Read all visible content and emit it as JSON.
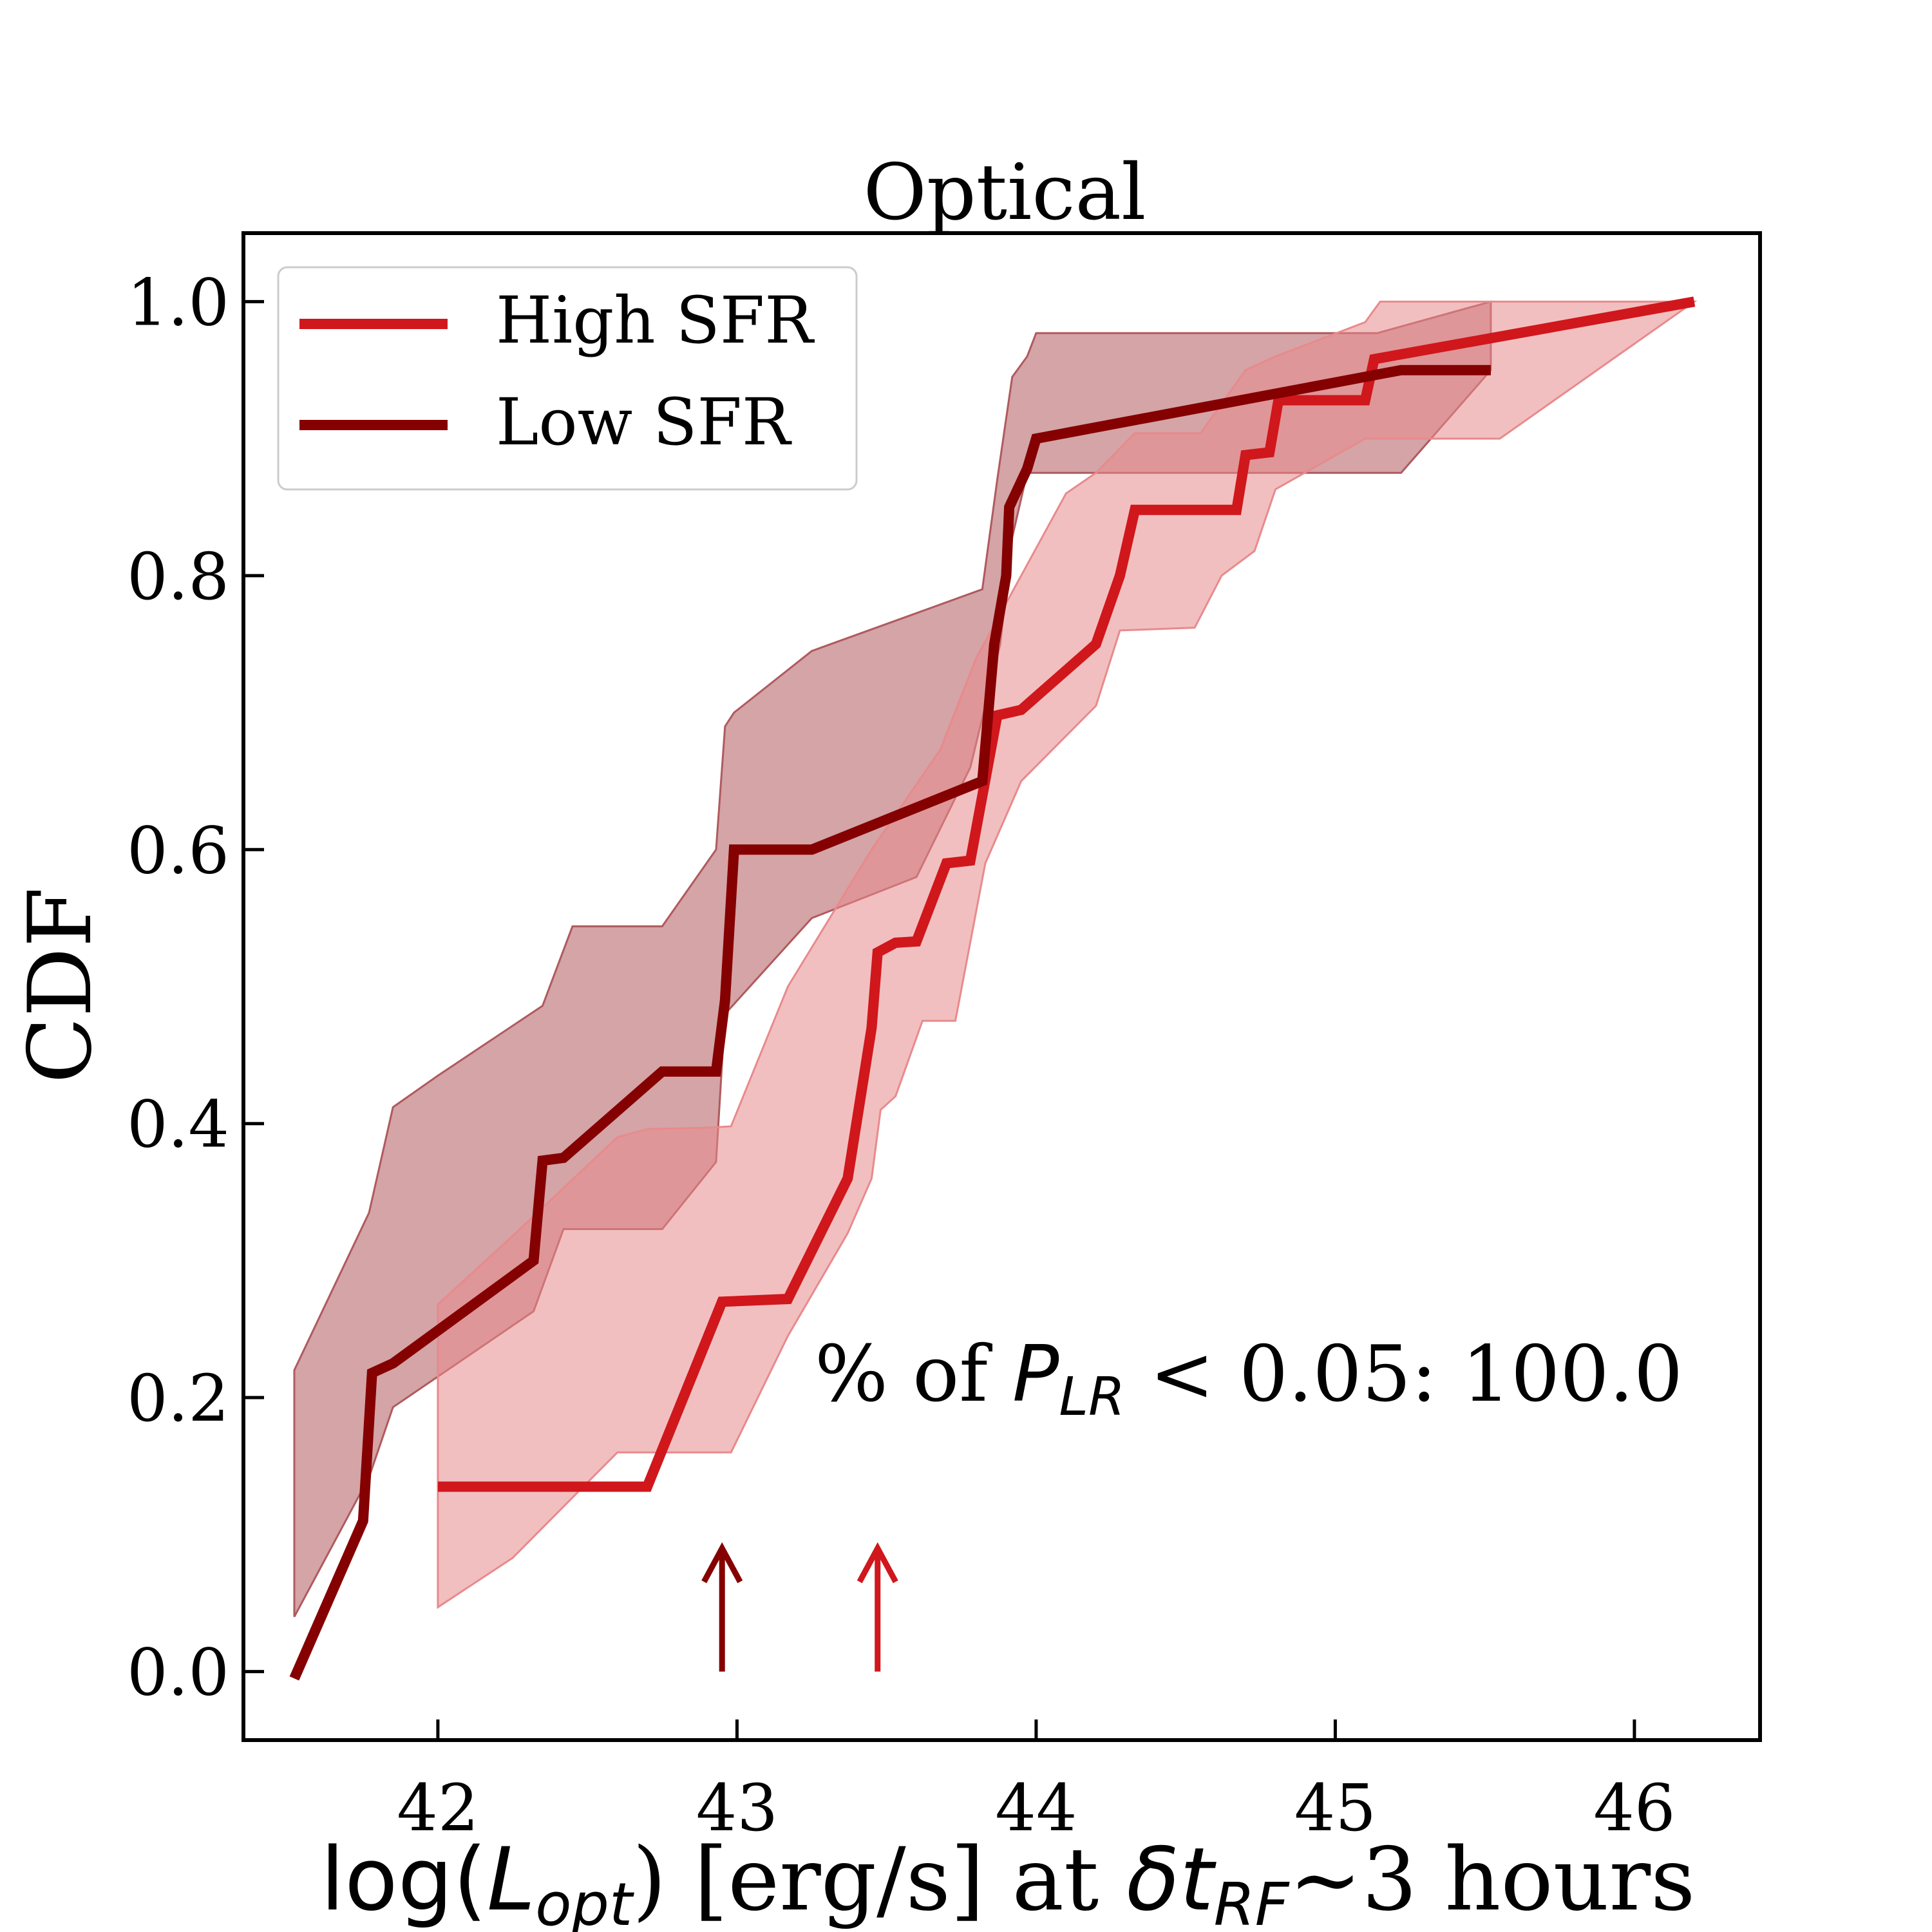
{
  "chart_data": {
    "type": "line",
    "title": "Optical",
    "ylabel": "CDF",
    "xlabel_parts": {
      "prefix": "log(",
      "var": "L",
      "var_sub": "opt",
      "middle": ") [erg/s] at ",
      "var2": "δt",
      "var2_sub": "RF",
      "suffix": "~3 hours"
    },
    "xlim": [
      41.35,
      46.42
    ],
    "ylim": [
      -0.05,
      1.05
    ],
    "x_ticks": [
      42,
      43,
      44,
      45,
      46
    ],
    "x_tick_labels": [
      "42",
      "43",
      "44",
      "45",
      "46"
    ],
    "y_ticks": [
      0.0,
      0.2,
      0.4,
      0.6,
      0.8,
      1.0
    ],
    "y_tick_labels": [
      "0.0",
      "0.2",
      "0.4",
      "0.6",
      "0.8",
      "1.0"
    ],
    "legend": {
      "position": "top-left",
      "entries": [
        "High SFR",
        "Low SFR"
      ]
    },
    "annotation": {
      "prefix": "% of ",
      "var": "P",
      "var_sub": "LR",
      "suffix": " < 0.05: 100.0"
    },
    "series": [
      {
        "name": "High SFR",
        "color": "#d0171c",
        "band_color": "#e88a8c",
        "points": [
          [
            42.0,
            0.135
          ],
          [
            42.7,
            0.135
          ],
          [
            42.95,
            0.27
          ],
          [
            43.17,
            0.272
          ],
          [
            43.37,
            0.36
          ],
          [
            43.45,
            0.47
          ],
          [
            43.47,
            0.525
          ],
          [
            43.53,
            0.532
          ],
          [
            43.6,
            0.533
          ],
          [
            43.7,
            0.59
          ],
          [
            43.78,
            0.592
          ],
          [
            43.87,
            0.698
          ],
          [
            43.95,
            0.702
          ],
          [
            44.2,
            0.75
          ],
          [
            44.28,
            0.8
          ],
          [
            44.33,
            0.848
          ],
          [
            44.67,
            0.848
          ],
          [
            44.7,
            0.888
          ],
          [
            44.78,
            0.89
          ],
          [
            44.81,
            0.928
          ],
          [
            45.1,
            0.928
          ],
          [
            45.13,
            0.958
          ],
          [
            46.2,
            1.0
          ]
        ],
        "band_upper": [
          [
            42.0,
            0.268
          ],
          [
            42.25,
            0.318
          ],
          [
            42.6,
            0.39
          ],
          [
            42.7,
            0.396
          ],
          [
            42.9,
            0.397
          ],
          [
            42.98,
            0.398
          ],
          [
            43.17,
            0.5
          ],
          [
            43.45,
            0.6
          ],
          [
            43.68,
            0.673
          ],
          [
            43.8,
            0.74
          ],
          [
            44.1,
            0.86
          ],
          [
            44.2,
            0.875
          ],
          [
            44.33,
            0.904
          ],
          [
            44.55,
            0.904
          ],
          [
            44.7,
            0.95
          ],
          [
            44.8,
            0.96
          ],
          [
            45.1,
            0.985
          ],
          [
            45.15,
            1.0
          ],
          [
            46.2,
            1.0
          ]
        ],
        "band_lower": [
          [
            42.0,
            0.047
          ],
          [
            42.25,
            0.083
          ],
          [
            42.6,
            0.16
          ],
          [
            42.7,
            0.16
          ],
          [
            42.98,
            0.16
          ],
          [
            43.17,
            0.245
          ],
          [
            43.37,
            0.32
          ],
          [
            43.45,
            0.36
          ],
          [
            43.48,
            0.41
          ],
          [
            43.53,
            0.42
          ],
          [
            43.62,
            0.475
          ],
          [
            43.73,
            0.475
          ],
          [
            43.83,
            0.59
          ],
          [
            43.95,
            0.65
          ],
          [
            44.2,
            0.705
          ],
          [
            44.28,
            0.76
          ],
          [
            44.53,
            0.762
          ],
          [
            44.62,
            0.8
          ],
          [
            44.73,
            0.818
          ],
          [
            44.8,
            0.863
          ],
          [
            45.1,
            0.9
          ],
          [
            45.55,
            0.9
          ]
        ]
      },
      {
        "name": "Low SFR",
        "color": "#850000",
        "band_color": "#b05a5e",
        "points": [
          [
            41.52,
            -0.005
          ],
          [
            41.75,
            0.11
          ],
          [
            41.78,
            0.218
          ],
          [
            41.85,
            0.225
          ],
          [
            42.32,
            0.3
          ],
          [
            42.35,
            0.373
          ],
          [
            42.42,
            0.375
          ],
          [
            42.75,
            0.438
          ],
          [
            42.93,
            0.438
          ],
          [
            42.96,
            0.49
          ],
          [
            42.99,
            0.6
          ],
          [
            43.25,
            0.6
          ],
          [
            43.82,
            0.65
          ],
          [
            43.86,
            0.75
          ],
          [
            43.9,
            0.8
          ],
          [
            43.91,
            0.85
          ],
          [
            43.97,
            0.878
          ],
          [
            44.0,
            0.9
          ],
          [
            45.22,
            0.95
          ],
          [
            45.52,
            0.95
          ]
        ],
        "band_upper": [
          [
            41.52,
            0.22
          ],
          [
            41.77,
            0.335
          ],
          [
            41.85,
            0.412
          ],
          [
            42.0,
            0.435
          ],
          [
            42.35,
            0.486
          ],
          [
            42.45,
            0.544
          ],
          [
            42.75,
            0.544
          ],
          [
            42.93,
            0.6
          ],
          [
            42.96,
            0.69
          ],
          [
            42.99,
            0.7
          ],
          [
            43.25,
            0.745
          ],
          [
            43.82,
            0.79
          ],
          [
            43.87,
            0.87
          ],
          [
            43.92,
            0.945
          ],
          [
            43.97,
            0.96
          ],
          [
            44.0,
            0.977
          ],
          [
            45.14,
            0.977
          ],
          [
            45.52,
            1.0
          ]
        ],
        "band_lower": [
          [
            41.52,
            0.04
          ],
          [
            41.77,
            0.142
          ],
          [
            41.85,
            0.193
          ],
          [
            42.32,
            0.263
          ],
          [
            42.42,
            0.323
          ],
          [
            42.75,
            0.323
          ],
          [
            42.93,
            0.372
          ],
          [
            42.96,
            0.48
          ],
          [
            43.25,
            0.55
          ],
          [
            43.6,
            0.58
          ],
          [
            43.78,
            0.66
          ],
          [
            43.88,
            0.75
          ],
          [
            43.92,
            0.828
          ],
          [
            43.97,
            0.875
          ],
          [
            45.22,
            0.875
          ],
          [
            45.52,
            0.95
          ]
        ]
      }
    ],
    "arrows": [
      {
        "series": "Low SFR",
        "x": 42.95,
        "y_from": 0.0,
        "y_to": 0.09
      },
      {
        "series": "High SFR",
        "x": 43.47,
        "y_from": 0.0,
        "y_to": 0.09
      }
    ]
  }
}
